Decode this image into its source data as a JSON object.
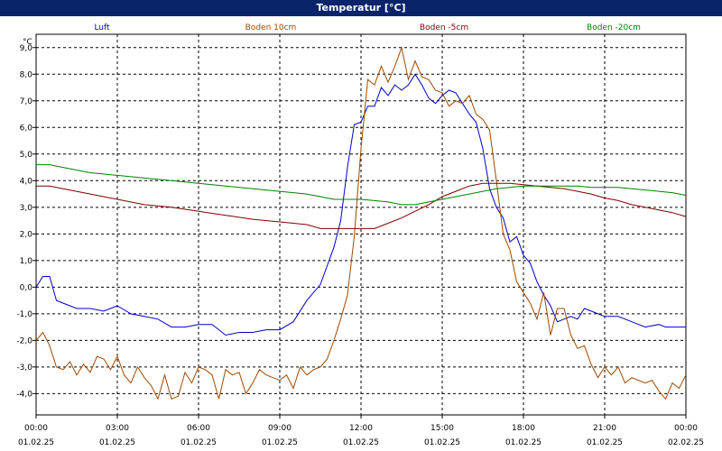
{
  "window": {
    "title": "Temperatur [°C]"
  },
  "chart_data": {
    "type": "line",
    "title": "Temperatur [°C]",
    "ylabel": "°C",
    "xlabel": "",
    "ylim": [
      -4.8,
      9.5
    ],
    "grid": true,
    "legend_placement": "top",
    "x_ticks": [
      {
        "time": "00:00",
        "date": "01.02.25"
      },
      {
        "time": "03:00",
        "date": "01.02.25"
      },
      {
        "time": "06:00",
        "date": "01.02.25"
      },
      {
        "time": "09:00",
        "date": "01.02.25"
      },
      {
        "time": "12:00",
        "date": "01.02.25"
      },
      {
        "time": "15:00",
        "date": "01.02.25"
      },
      {
        "time": "18:00",
        "date": "01.02.25"
      },
      {
        "time": "21:00",
        "date": "01.02.25"
      },
      {
        "time": "00:00",
        "date": "02.02.25"
      }
    ],
    "y_ticks": [
      "9,0",
      "8,0",
      "7,0",
      "6,0",
      "5,0",
      "4,0",
      "3,0",
      "2,0",
      "1,0",
      "0,0",
      "-1,0",
      "-2,0",
      "-3,0",
      "-4,0"
    ],
    "series": [
      {
        "name": "Luft",
        "color": "#0000c8",
        "x": [
          0,
          0.25,
          0.5,
          0.75,
          1,
          1.25,
          1.5,
          2,
          2.5,
          3,
          3.5,
          4,
          4.5,
          5,
          5.5,
          6,
          6.5,
          7,
          7.5,
          8,
          8.5,
          9,
          9.5,
          10,
          10.5,
          11,
          11.25,
          11.5,
          11.75,
          12,
          12.25,
          12.5,
          12.75,
          13,
          13.25,
          13.5,
          13.75,
          14,
          14.25,
          14.5,
          14.75,
          15,
          15.25,
          15.5,
          15.75,
          16,
          16.25,
          16.5,
          16.75,
          17,
          17.25,
          17.5,
          17.75,
          18,
          18.25,
          18.5,
          18.75,
          19,
          19.25,
          19.5,
          19.75,
          20,
          20.25,
          20.5,
          20.75,
          21,
          21.5,
          22,
          22.5,
          23,
          23.25,
          23.5,
          23.75,
          24
        ],
        "values": [
          0,
          0.4,
          0.4,
          -0.5,
          -0.6,
          -0.7,
          -0.8,
          -0.8,
          -0.9,
          -0.7,
          -1.0,
          -1.1,
          -1.2,
          -1.5,
          -1.5,
          -1.4,
          -1.4,
          -1.8,
          -1.7,
          -1.7,
          -1.6,
          -1.6,
          -1.3,
          -0.5,
          0.1,
          1.5,
          2.5,
          4.5,
          6.1,
          6.2,
          6.8,
          6.8,
          7.5,
          7.2,
          7.6,
          7.4,
          7.6,
          8.0,
          7.6,
          7.1,
          6.9,
          7.2,
          7.4,
          7.3,
          6.9,
          6.5,
          6.2,
          5.2,
          3.7,
          3.0,
          2.6,
          1.7,
          1.9,
          1.2,
          0.9,
          0.2,
          -0.3,
          -0.7,
          -1.3,
          -1.2,
          -1.1,
          -1.2,
          -0.8,
          -0.9,
          -1.0,
          -1.1,
          -1.1,
          -1.3,
          -1.5,
          -1.4,
          -1.5,
          -1.5,
          -1.5,
          -1.5
        ]
      },
      {
        "name": "Boden 10cm",
        "color": "#a04800",
        "x": [
          0,
          0.25,
          0.5,
          0.75,
          1,
          1.25,
          1.5,
          1.75,
          2,
          2.25,
          2.5,
          2.75,
          3,
          3.25,
          3.5,
          3.75,
          4,
          4.25,
          4.5,
          4.75,
          5,
          5.25,
          5.5,
          5.75,
          6,
          6.25,
          6.5,
          6.75,
          7,
          7.25,
          7.5,
          7.75,
          8,
          8.25,
          8.5,
          8.75,
          9,
          9.25,
          9.5,
          9.75,
          10,
          10.25,
          10.5,
          10.75,
          11,
          11.25,
          11.5,
          11.75,
          12,
          12.25,
          12.5,
          12.75,
          13,
          13.25,
          13.5,
          13.75,
          14,
          14.25,
          14.5,
          14.75,
          15,
          15.25,
          15.5,
          15.75,
          16,
          16.25,
          16.5,
          16.75,
          17,
          17.25,
          17.5,
          17.75,
          18,
          18.25,
          18.5,
          18.75,
          19,
          19.25,
          19.5,
          19.75,
          20,
          20.25,
          20.5,
          20.75,
          21,
          21.25,
          21.5,
          21.75,
          22,
          22.25,
          22.5,
          22.75,
          23,
          23.25,
          23.5,
          23.75,
          24
        ],
        "values": [
          -2.0,
          -1.7,
          -2.2,
          -3.0,
          -3.1,
          -2.8,
          -3.3,
          -2.9,
          -3.2,
          -2.6,
          -2.7,
          -3.1,
          -2.6,
          -3.3,
          -3.6,
          -3.0,
          -3.4,
          -3.7,
          -4.2,
          -3.3,
          -4.2,
          -4.1,
          -3.2,
          -3.6,
          -3.0,
          -3.1,
          -3.3,
          -4.2,
          -3.1,
          -3.3,
          -3.2,
          -4.0,
          -3.6,
          -3.1,
          -3.3,
          -3.4,
          -3.5,
          -3.3,
          -3.8,
          -3.0,
          -3.3,
          -3.1,
          -3.0,
          -2.7,
          -2.0,
          -1.2,
          -0.3,
          1.9,
          5.2,
          7.8,
          7.6,
          8.3,
          7.7,
          8.3,
          9.0,
          7.8,
          8.5,
          7.9,
          7.8,
          7.4,
          7.3,
          6.8,
          7.0,
          6.9,
          7.2,
          6.5,
          6.3,
          5.9,
          4.0,
          2.0,
          1.4,
          0.2,
          -0.2,
          -0.6,
          -1.2,
          -0.2,
          -1.8,
          -0.8,
          -0.8,
          -1.8,
          -2.3,
          -2.2,
          -2.9,
          -3.4,
          -3.0,
          -3.3,
          -3.0,
          -3.6,
          -3.4,
          -3.5,
          -3.6,
          -3.5,
          -3.9,
          -4.2,
          -3.6,
          -3.8,
          -3.3
        ]
      },
      {
        "name": "Boden -5cm",
        "color": "#800000",
        "x": [
          0,
          0.5,
          1,
          2,
          3,
          4,
          5,
          6,
          7,
          8,
          9,
          10,
          10.5,
          11,
          11.5,
          12,
          12.5,
          13,
          13.5,
          14,
          14.5,
          15,
          15.5,
          16,
          16.5,
          17,
          17.5,
          18,
          18.5,
          19,
          19.5,
          20,
          20.5,
          21,
          21.5,
          22,
          22.5,
          23,
          23.5,
          24
        ],
        "values": [
          3.8,
          3.8,
          3.7,
          3.5,
          3.3,
          3.1,
          3.0,
          2.85,
          2.7,
          2.55,
          2.45,
          2.35,
          2.2,
          2.2,
          2.2,
          2.2,
          2.2,
          2.4,
          2.6,
          2.85,
          3.1,
          3.4,
          3.6,
          3.8,
          3.9,
          3.9,
          3.9,
          3.85,
          3.8,
          3.75,
          3.7,
          3.6,
          3.5,
          3.35,
          3.25,
          3.1,
          3.0,
          2.9,
          2.8,
          2.65
        ]
      },
      {
        "name": "Boden -20cm",
        "color": "#008000",
        "x": [
          0,
          0.5,
          1,
          2,
          3,
          4,
          5,
          6,
          7,
          8,
          9,
          10,
          10.5,
          11,
          11.5,
          12,
          12.5,
          13,
          13.5,
          14,
          14.5,
          15,
          15.5,
          16,
          16.5,
          17,
          17.5,
          18,
          18.5,
          19,
          19.5,
          20,
          20.5,
          21,
          21.5,
          22,
          22.5,
          23,
          23.5,
          24
        ],
        "values": [
          4.6,
          4.6,
          4.5,
          4.3,
          4.2,
          4.1,
          4.0,
          3.9,
          3.8,
          3.7,
          3.6,
          3.5,
          3.4,
          3.3,
          3.3,
          3.3,
          3.25,
          3.2,
          3.1,
          3.1,
          3.2,
          3.3,
          3.4,
          3.5,
          3.6,
          3.7,
          3.75,
          3.8,
          3.8,
          3.8,
          3.8,
          3.8,
          3.75,
          3.75,
          3.75,
          3.7,
          3.65,
          3.6,
          3.55,
          3.45
        ]
      }
    ]
  }
}
